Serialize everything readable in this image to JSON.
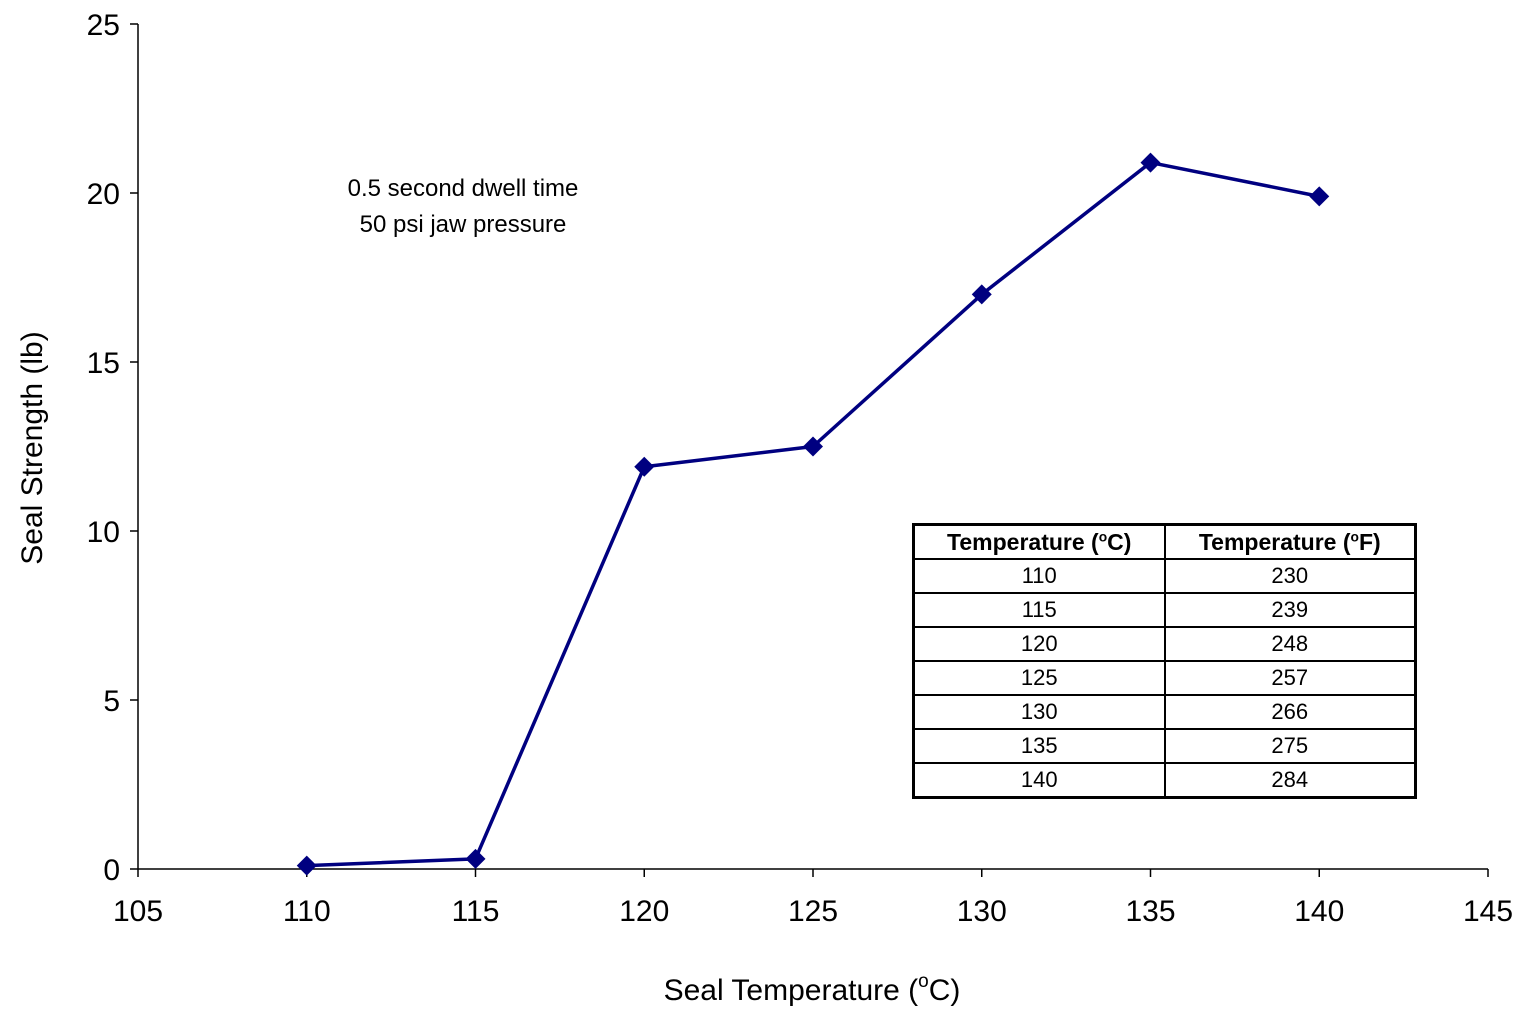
{
  "chart_data": {
    "type": "line",
    "xlabel_prefix": "Seal Temperature (",
    "xlabel_sup": "o",
    "xlabel_suffix": "C)",
    "ylabel": "Seal Strength (lb)",
    "xlim": [
      105,
      145
    ],
    "ylim": [
      0,
      25
    ],
    "xticks": [
      105,
      110,
      115,
      120,
      125,
      130,
      135,
      140,
      145
    ],
    "yticks": [
      0,
      5,
      10,
      15,
      20,
      25
    ],
    "grid": false,
    "series": [
      {
        "x": [
          110,
          115,
          120,
          125,
          130,
          135,
          140
        ],
        "y": [
          0.1,
          0.3,
          11.9,
          12.5,
          17.0,
          20.9,
          19.9
        ],
        "color": "#000080",
        "marker": "diamond"
      }
    ],
    "annotation": [
      "0.5 second dwell time",
      "50 psi jaw pressure"
    ]
  },
  "table": {
    "headers": [
      {
        "prefix": "Temperature (",
        "sup": "o",
        "suffix": "C)"
      },
      {
        "prefix": "Temperature (",
        "sup": "o",
        "suffix": "F)"
      }
    ],
    "rows": [
      [
        "110",
        "230"
      ],
      [
        "115",
        "239"
      ],
      [
        "120",
        "248"
      ],
      [
        "125",
        "257"
      ],
      [
        "130",
        "266"
      ],
      [
        "135",
        "275"
      ],
      [
        "140",
        "284"
      ]
    ]
  }
}
